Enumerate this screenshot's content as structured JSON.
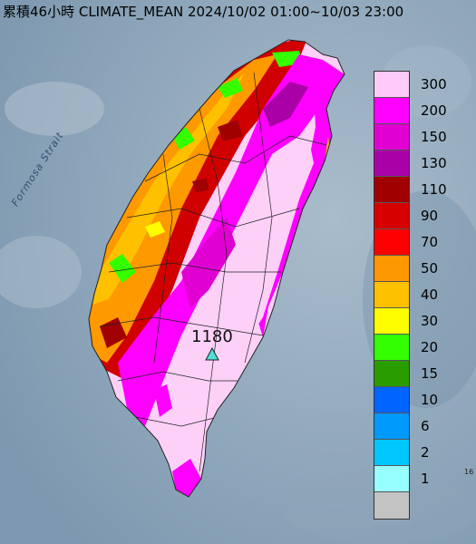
{
  "title": "累積46小時 CLIMATE_MEAN 2024/10/02 01:00~10/03 23:00",
  "strait_label": "Formosa Strait",
  "max_marker": {
    "label": "1180",
    "symbol": "triangle-icon",
    "color": "#4fe0d8"
  },
  "corner_label": "16",
  "legend": {
    "items": [
      {
        "label": "300",
        "color": "#fecaf8"
      },
      {
        "label": "200",
        "color": "#fd00fe"
      },
      {
        "label": "150",
        "color": "#e000d2"
      },
      {
        "label": "130",
        "color": "#aa00a8"
      },
      {
        "label": "110",
        "color": "#a00000"
      },
      {
        "label": "90",
        "color": "#d70000"
      },
      {
        "label": "70",
        "color": "#fe0000"
      },
      {
        "label": "50",
        "color": "#fe9800"
      },
      {
        "label": "40",
        "color": "#fec100"
      },
      {
        "label": "30",
        "color": "#fefe00"
      },
      {
        "label": "20",
        "color": "#33ff00"
      },
      {
        "label": "15",
        "color": "#299c00"
      },
      {
        "label": "10",
        "color": "#0064fe"
      },
      {
        "label": "6",
        "color": "#0099fe"
      },
      {
        "label": "2",
        "color": "#00c7fe"
      },
      {
        "label": "1",
        "color": "#98ffff"
      },
      {
        "label": "",
        "color": "#c3c3c3"
      }
    ]
  }
}
